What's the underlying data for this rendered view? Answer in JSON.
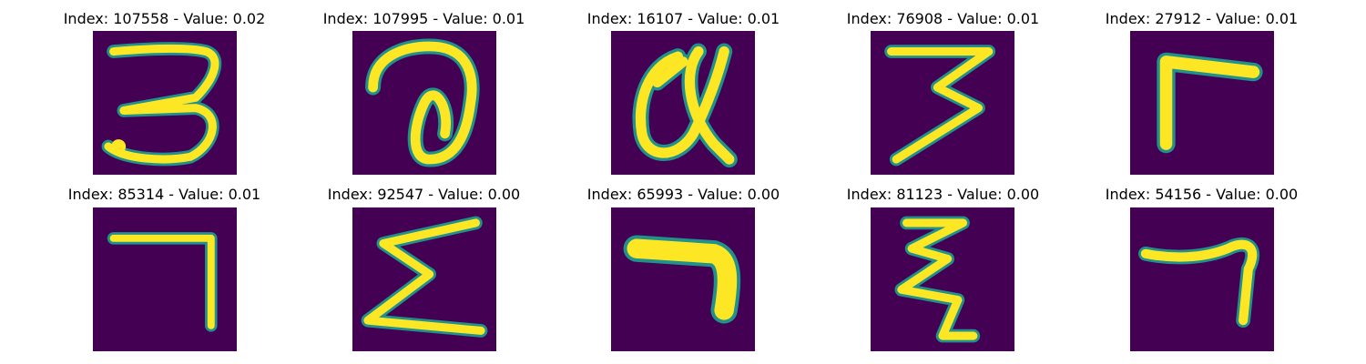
{
  "figure": {
    "background_color": "#440154",
    "stroke_color": "#fde725",
    "edge_color": "#21918c",
    "panels": [
      {
        "title": "Index: 107558 - Value: 0.02",
        "glyph": "three-curly"
      },
      {
        "title": "Index: 107995 - Value: 0.01",
        "glyph": "loop-a"
      },
      {
        "title": "Index: 16107 - Value: 0.01",
        "glyph": "alpha-q"
      },
      {
        "title": "Index: 76908 - Value: 0.01",
        "glyph": "three-sharp"
      },
      {
        "title": "Index: 27912 - Value: 0.01",
        "glyph": "gamma-r"
      },
      {
        "title": "Index: 85314 - Value: 0.01",
        "glyph": "seven-thin"
      },
      {
        "title": "Index: 92547 - Value: 0.00",
        "glyph": "sigma"
      },
      {
        "title": "Index: 65993 - Value: 0.00",
        "glyph": "seven-thick"
      },
      {
        "title": "Index: 81123 - Value: 0.00",
        "glyph": "xi"
      },
      {
        "title": "Index: 54156 - Value: 0.00",
        "glyph": "seven-hook"
      }
    ]
  }
}
